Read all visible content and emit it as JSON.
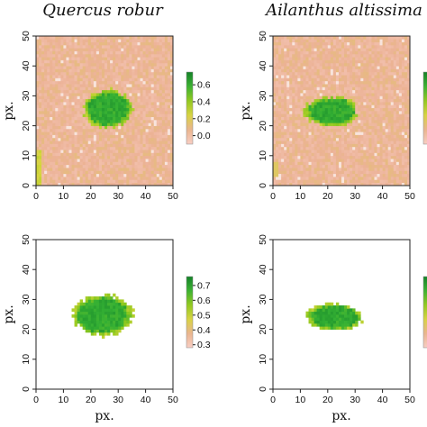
{
  "chart_data": [
    {
      "type": "heatmap",
      "title": "Quercus robur",
      "xlabel": "",
      "ylabel": "px.",
      "xlim": [
        0,
        50
      ],
      "ylim": [
        0,
        50
      ],
      "x_ticks": [
        "0",
        "10",
        "20",
        "30",
        "40",
        "50"
      ],
      "y_ticks": [
        "0",
        "10",
        "20",
        "30",
        "40",
        "50"
      ],
      "background": "masked",
      "colorbar": {
        "min": -0.1,
        "max": 0.75,
        "ticks": [
          "0.0",
          "0.2",
          "0.4",
          "0.6"
        ]
      },
      "blob": {
        "cx": 26.5,
        "cy": 25.7,
        "rx_left": 9.5,
        "rx_right": 8.8,
        "ry": 6.3,
        "value": 0.62
      }
    },
    {
      "type": "heatmap",
      "title": "Ailanthus altissima",
      "xlabel": "",
      "ylabel": "px.",
      "xlim": [
        0,
        50
      ],
      "ylim": [
        0,
        50
      ],
      "x_ticks": [
        "0",
        "10",
        "20",
        "30",
        "40",
        "50"
      ],
      "y_ticks": [
        "0",
        "10",
        "20",
        "30",
        "40",
        "50"
      ],
      "background": "masked",
      "colorbar": {
        "min": -0.1,
        "max": 0.75,
        "ticks": []
      },
      "blob": {
        "cx": 22.8,
        "cy": 24.8,
        "rx_left": 11.5,
        "rx_right": 8.0,
        "ry": 5.0,
        "value": 0.62
      }
    },
    {
      "type": "heatmap",
      "title": "",
      "xlabel": "px.",
      "ylabel": "px.",
      "xlim": [
        0,
        50
      ],
      "ylim": [
        0,
        50
      ],
      "x_ticks": [
        "0",
        "10",
        "20",
        "30",
        "40",
        "50"
      ],
      "y_ticks": [
        "0",
        "10",
        "20",
        "30",
        "40",
        "50"
      ],
      "background": "white",
      "colorbar": {
        "min": 0.28,
        "max": 0.76,
        "ticks": [
          "0.3",
          "0.4",
          "0.5",
          "0.6",
          "0.7"
        ]
      },
      "blob": {
        "cx": 24.5,
        "cy": 24.8,
        "rx_left": 11.2,
        "rx_right": 10.5,
        "ry": 6.8,
        "value": 0.6
      }
    },
    {
      "type": "heatmap",
      "title": "",
      "xlabel": "px.",
      "ylabel": "px.",
      "xlim": [
        0,
        50
      ],
      "ylim": [
        0,
        50
      ],
      "x_ticks": [
        "0",
        "10",
        "20",
        "30",
        "40",
        "50"
      ],
      "y_ticks": [
        "0",
        "10",
        "20",
        "30",
        "40",
        "50"
      ],
      "background": "white",
      "colorbar": {
        "min": 0.28,
        "max": 0.76,
        "ticks": []
      },
      "blob": {
        "cx": 23.0,
        "cy": 24.2,
        "rx_left": 11.0,
        "rx_right": 9.5,
        "ry": 4.5,
        "value": 0.6
      }
    }
  ]
}
